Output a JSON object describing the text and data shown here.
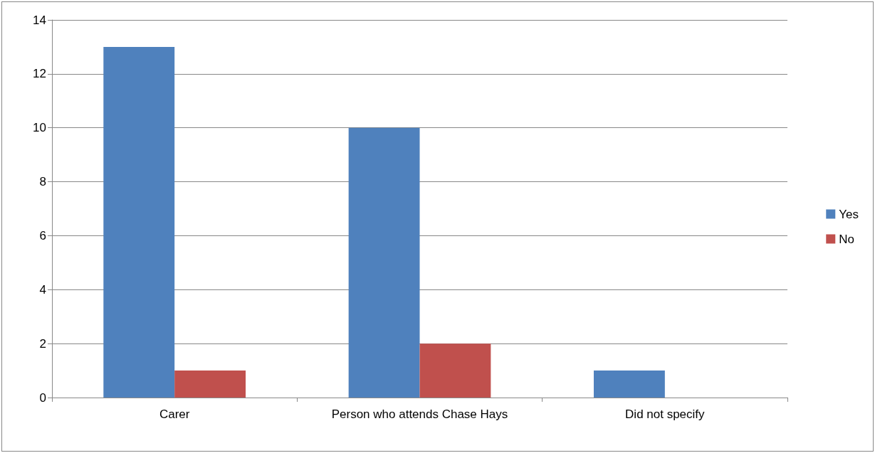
{
  "chart_data": {
    "type": "bar",
    "categories": [
      "Carer",
      "Person who attends Chase Hays",
      "Did not specify"
    ],
    "series": [
      {
        "name": "Yes",
        "color": "#4f81bd",
        "values": [
          13,
          10,
          1
        ]
      },
      {
        "name": "No",
        "color": "#c0504d",
        "values": [
          1,
          2,
          0
        ]
      }
    ],
    "ylim": [
      0,
      14
    ],
    "yticks": [
      0,
      2,
      4,
      6,
      8,
      10,
      12,
      14
    ],
    "grid": "y",
    "legend": "right"
  }
}
